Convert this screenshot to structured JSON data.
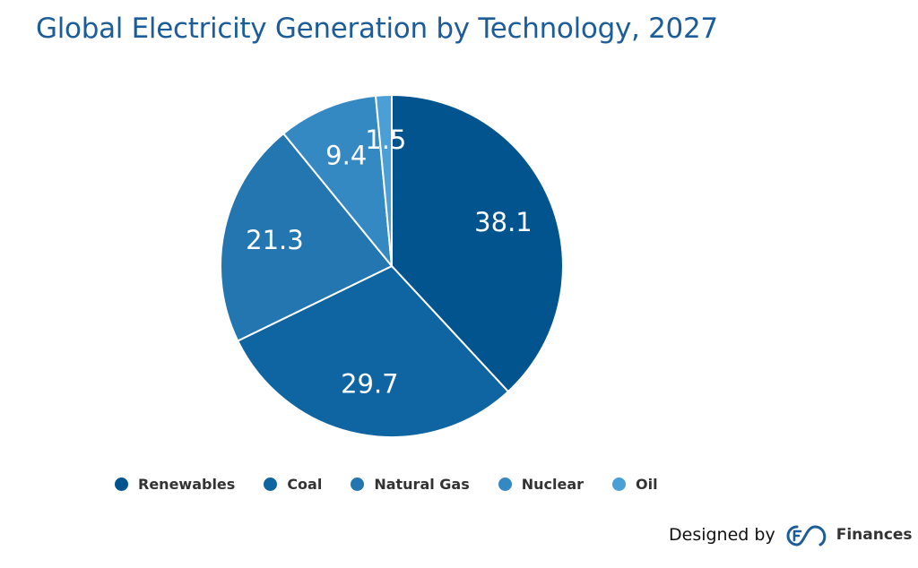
{
  "chart_data": {
    "type": "pie",
    "title": "Global Electricity Generation by Technology, 2027",
    "categories": [
      "Renewables",
      "Coal",
      "Natural Gas",
      "Nuclear",
      "Oil"
    ],
    "values": [
      38.1,
      29.7,
      21.3,
      9.4,
      1.5
    ],
    "data_labels": [
      "38.1",
      "29.7",
      "21.3",
      "9.4",
      "1.5"
    ],
    "colors": [
      "#02548f",
      "#0f65a1",
      "#2376b0",
      "#3489c3",
      "#4a9fd6"
    ],
    "start_angle": "12 o'clock",
    "direction": "clockwise",
    "legend_position": "bottom"
  },
  "footer": {
    "designed_by": "Designed by",
    "brand": "Finances",
    "brand_color": "#1d5c96"
  }
}
